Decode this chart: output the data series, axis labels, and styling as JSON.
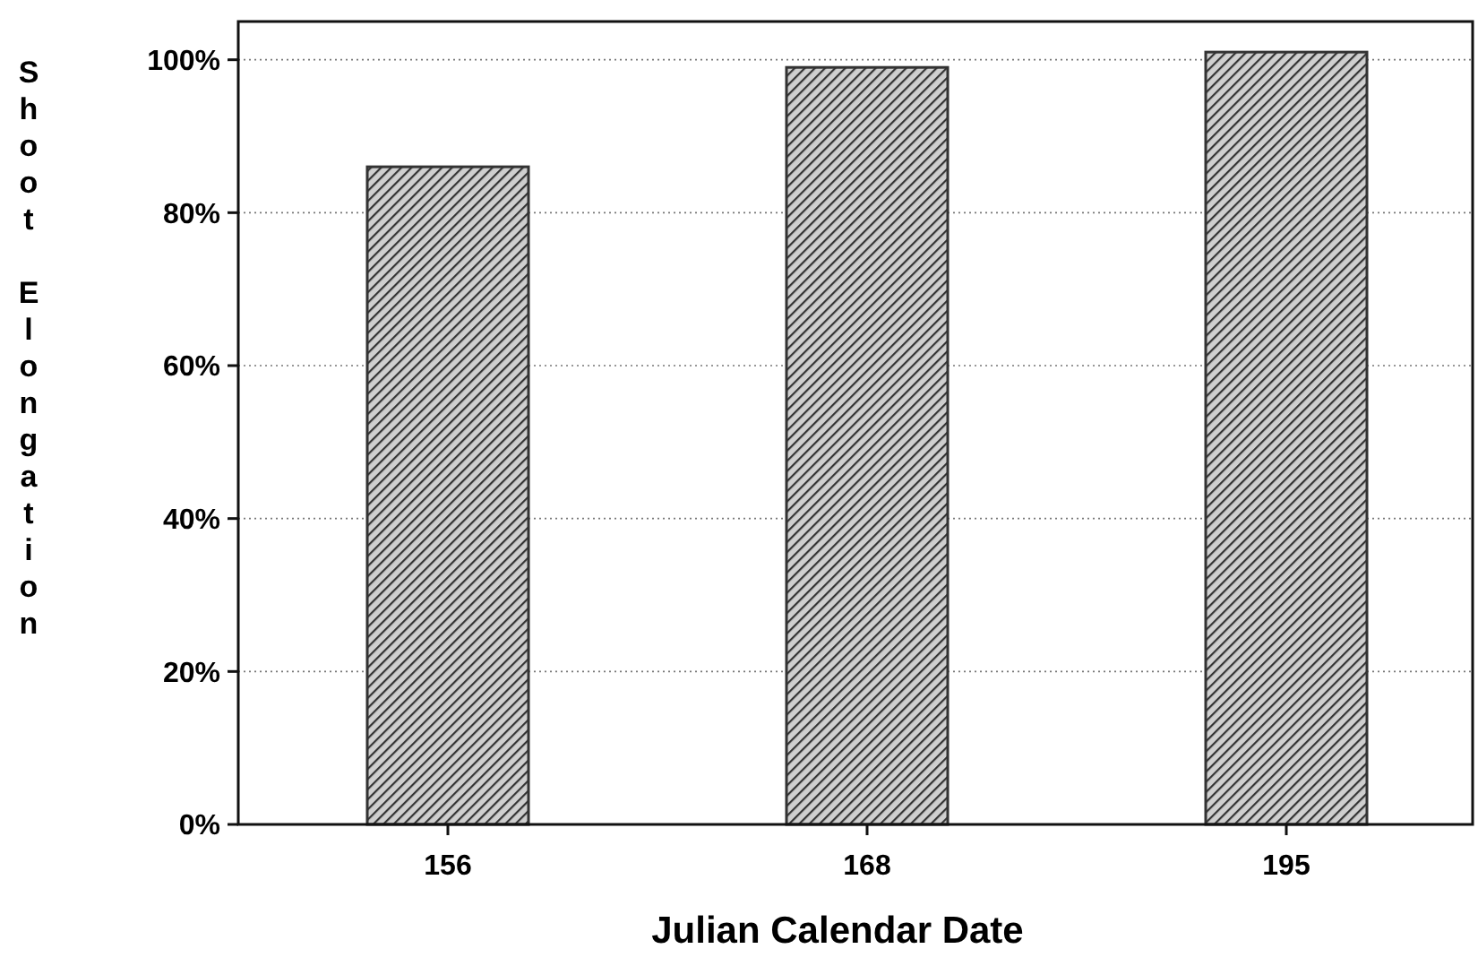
{
  "chart_data": {
    "type": "bar",
    "xlabel": "Julian Calendar Date",
    "ylabel": "Shoot Elongation",
    "categories": [
      "156",
      "168",
      "195"
    ],
    "values": [
      86,
      99,
      101
    ],
    "color": "#333333",
    "ylim": [
      0,
      105
    ],
    "yticks": [
      {
        "value": 0,
        "label": "0%"
      },
      {
        "value": 20,
        "label": "20%"
      },
      {
        "value": 40,
        "label": "40%"
      },
      {
        "value": 60,
        "label": "60%"
      },
      {
        "value": 80,
        "label": "80%"
      },
      {
        "value": 100,
        "label": "100%"
      }
    ],
    "grid": "y"
  }
}
